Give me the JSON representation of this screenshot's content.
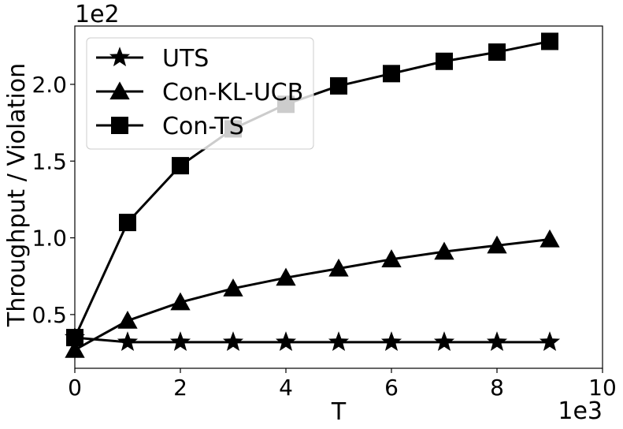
{
  "chart_data": {
    "type": "line",
    "title": "",
    "xlabel": "T",
    "ylabel": "Throughput / Violation",
    "x_offset_label": "1e3",
    "y_offset_label": "1e2",
    "xlim": [
      0,
      10
    ],
    "ylim": [
      0.15,
      2.38
    ],
    "xticks": [
      0,
      2,
      4,
      6,
      8,
      10
    ],
    "xtick_labels": [
      "0",
      "2",
      "4",
      "6",
      "8",
      "10"
    ],
    "yticks": [
      0.5,
      1.0,
      1.5,
      2.0
    ],
    "ytick_labels": [
      "0.5",
      "1.0",
      "1.5",
      "2.0"
    ],
    "grid": false,
    "legend_position": "top-left",
    "x": [
      0,
      1,
      2,
      3,
      4,
      5,
      6,
      7,
      8,
      9
    ],
    "series": [
      {
        "name": "UTS",
        "marker": "star",
        "color": "#000000",
        "values": [
          0.35,
          0.32,
          0.32,
          0.32,
          0.32,
          0.32,
          0.32,
          0.32,
          0.32,
          0.32
        ]
      },
      {
        "name": "Con-KL-UCB",
        "marker": "triangle",
        "color": "#000000",
        "values": [
          0.27,
          0.46,
          0.58,
          0.67,
          0.74,
          0.8,
          0.86,
          0.91,
          0.95,
          0.99
        ]
      },
      {
        "name": "Con-TS",
        "marker": "square",
        "color": "#000000",
        "values": [
          0.35,
          1.1,
          1.47,
          1.71,
          1.87,
          1.99,
          2.07,
          2.15,
          2.21,
          2.28
        ]
      }
    ]
  }
}
